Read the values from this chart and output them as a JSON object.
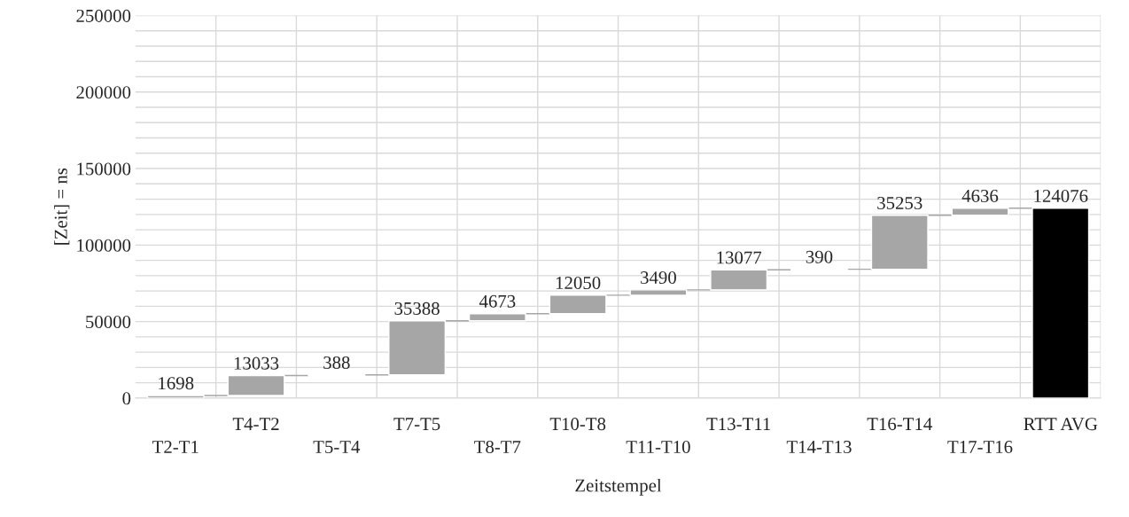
{
  "chart_data": {
    "type": "bar",
    "xlabel": "Zeitstempel",
    "ylabel": "[Zeit] = ns",
    "categories": [
      "T2-T1",
      "T4-T2",
      "T5-T4",
      "T7-T5",
      "T8-T7",
      "T10-T8",
      "T11-T10",
      "T13-T11",
      "T14-T13",
      "T16-T14",
      "T17-T16",
      "RTT AVG"
    ],
    "values": [
      1698,
      13033,
      388,
      35388,
      4673,
      12050,
      3490,
      13077,
      390,
      35253,
      4636,
      124076
    ],
    "base": [
      0,
      1698,
      14731,
      15119,
      50507,
      55180,
      67230,
      70720,
      83797,
      84187,
      119440,
      0
    ],
    "colors": [
      "#a6a6a6",
      "#a6a6a6",
      "#a6a6a6",
      "#a6a6a6",
      "#a6a6a6",
      "#a6a6a6",
      "#a6a6a6",
      "#a6a6a6",
      "#a6a6a6",
      "#a6a6a6",
      "#a6a6a6",
      "#000000"
    ],
    "data_labels": true,
    "ylim": [
      0,
      250000
    ],
    "yticks": [
      0,
      {
        "value": 10000,
        "label": null
      },
      {
        "value": 20000,
        "label": null
      },
      {
        "value": 30000,
        "label": null
      },
      {
        "value": 40000,
        "label": null
      },
      50000,
      {
        "value": 60000,
        "label": null
      },
      {
        "value": 70000,
        "label": null
      },
      {
        "value": 80000,
        "label": null
      },
      {
        "value": 90000,
        "label": null
      },
      100000,
      {
        "value": 110000,
        "label": null
      },
      {
        "value": 120000,
        "label": null
      },
      {
        "value": 130000,
        "label": null
      },
      {
        "value": 140000,
        "label": null
      },
      150000,
      {
        "value": 160000,
        "label": null
      },
      {
        "value": 170000,
        "label": null
      },
      {
        "value": 180000,
        "label": null
      },
      {
        "value": 190000,
        "label": null
      },
      200000,
      {
        "value": 210000,
        "label": null
      },
      {
        "value": 220000,
        "label": null
      },
      {
        "value": 230000,
        "label": null
      },
      {
        "value": 240000,
        "label": null
      },
      250000
    ],
    "grid": true
  }
}
